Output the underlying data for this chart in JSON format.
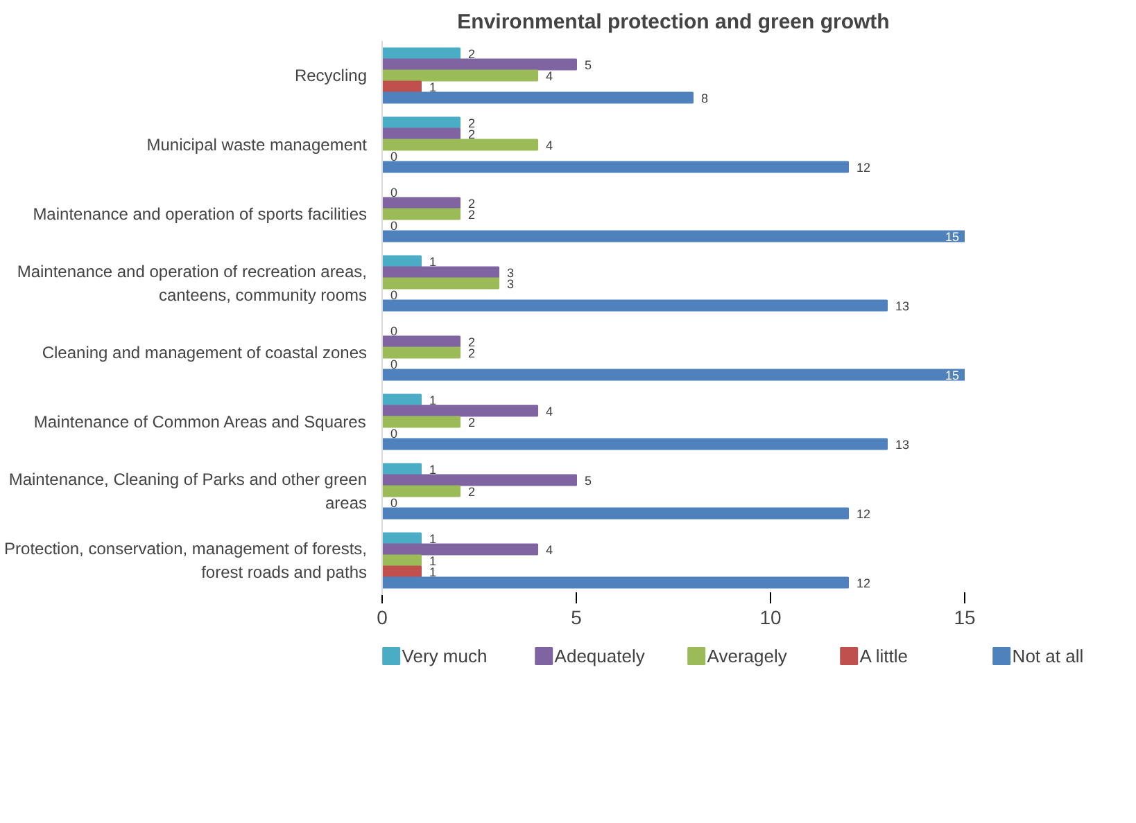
{
  "chart_data": {
    "type": "bar",
    "orientation": "horizontal",
    "title": "Environmental protection and green growth",
    "categories": [
      "Recycling",
      "Municipal waste management",
      "Maintenance and operation of sports facilities",
      "Maintenance and operation of recreation areas, canteens, community rooms",
      "Cleaning and management of coastal zones",
      "Maintenance of Common Areas and Squares",
      "Maintenance, Cleaning of Parks and other green areas",
      "Protection, conservation, management of forests, forest roads and paths"
    ],
    "series": [
      {
        "name": "Very much",
        "color": "#4bacc6",
        "values": [
          2,
          2,
          0,
          1,
          0,
          1,
          1,
          1
        ]
      },
      {
        "name": "Adequately",
        "color": "#8064a2",
        "values": [
          5,
          2,
          2,
          3,
          2,
          4,
          5,
          4
        ]
      },
      {
        "name": "Averagely",
        "color": "#9bbb59",
        "values": [
          4,
          4,
          2,
          3,
          2,
          2,
          2,
          1
        ]
      },
      {
        "name": "A little",
        "color": "#c0504d",
        "values": [
          1,
          0,
          0,
          0,
          0,
          0,
          0,
          1
        ]
      },
      {
        "name": "Not at all",
        "color": "#4f81bd",
        "values": [
          8,
          12,
          15,
          13,
          15,
          13,
          12,
          12
        ]
      }
    ],
    "xlim": [
      0,
      15
    ],
    "xticks": [
      0,
      5,
      10,
      15
    ],
    "grid": false,
    "legend": "bottom",
    "data_labels": true
  }
}
